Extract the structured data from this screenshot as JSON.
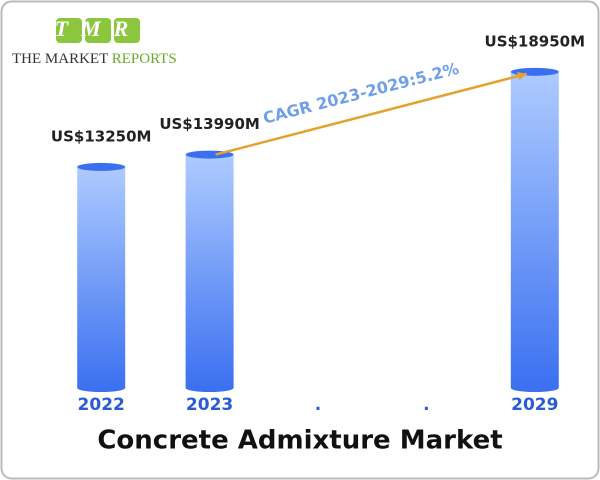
{
  "chart_data": {
    "type": "bar",
    "title": "Concrete Admixture Market",
    "logo": {
      "mark": "TMR",
      "name": "THE MARKET",
      "name_accent": "REPORTS"
    },
    "annotation": "CAGR 2023-2029:5.2%",
    "categories": [
      "2022",
      "2023",
      ".",
      ".",
      "2029"
    ],
    "values": [
      13250,
      13990,
      null,
      null,
      18950
    ],
    "value_labels": [
      "US$13250M",
      "US$13990M",
      null,
      null,
      "US$18950M"
    ],
    "color": "#3a6ff0",
    "ylim": [
      0,
      19000
    ]
  }
}
